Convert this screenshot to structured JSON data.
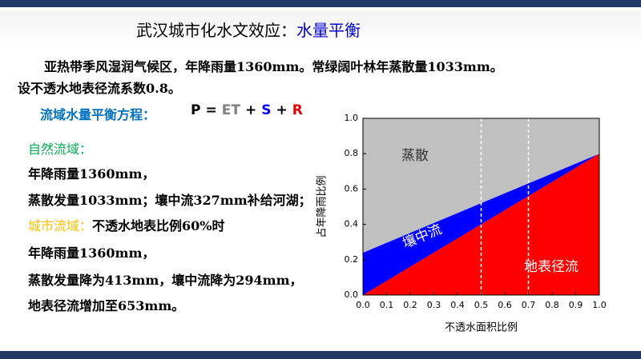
{
  "header": {
    "title": "武汉城市化水文效应：",
    "highlight": "水量平衡"
  },
  "intro": [
    "亚热带季风湿润气候区，年降雨量1360mm。常绿阔叶林年蒸散量1033mm。",
    "设不透水地表径流系数0.8。"
  ],
  "equation": {
    "label": "流域水量平衡方程：",
    "terms": [
      "P",
      "=",
      "ET",
      "+",
      "S",
      "+",
      "R"
    ]
  },
  "natural": {
    "heading": "自然流域：",
    "lines": [
      "年降雨量1360mm，",
      "蒸散发量1033mm；壤中流327mm补给河湖；"
    ]
  },
  "urban": {
    "heading": "城市流域：",
    "condition": "不透水地表比例60%时",
    "lines": [
      "年降雨量1360mm，",
      "蒸散发量降为413mm，壤中流降为294mm，",
      "地表径流增加至653mm。"
    ]
  },
  "chart_data": {
    "type": "area",
    "stacked": true,
    "xlabel": "不透水面积比例",
    "ylabel": "占年降雨比例",
    "x": [
      0,
      1
    ],
    "series": [
      {
        "name": "地表径流",
        "color": "#ff0000",
        "values": [
          0,
          0.8
        ]
      },
      {
        "name": "壤中流",
        "color": "#0000ff",
        "values": [
          0.24,
          0
        ]
      },
      {
        "name": "蒸散",
        "color": "#c0c0c0",
        "values": [
          0.76,
          0.2
        ]
      }
    ],
    "xlim": [
      0,
      1
    ],
    "ylim": [
      0,
      1
    ],
    "xticks": [
      {
        "value": 0,
        "label": "0.0"
      },
      0.1,
      0.2,
      0.3,
      0.4,
      0.5,
      0.6,
      0.7,
      0.8,
      0.9,
      {
        "value": 1,
        "label": "1.0"
      }
    ],
    "yticks": [
      {
        "value": 0,
        "label": "0.0"
      },
      0.2,
      0.4,
      0.6,
      0.8,
      {
        "value": 1,
        "label": "1.0"
      }
    ],
    "vlines": [
      0.5,
      0.7
    ]
  }
}
